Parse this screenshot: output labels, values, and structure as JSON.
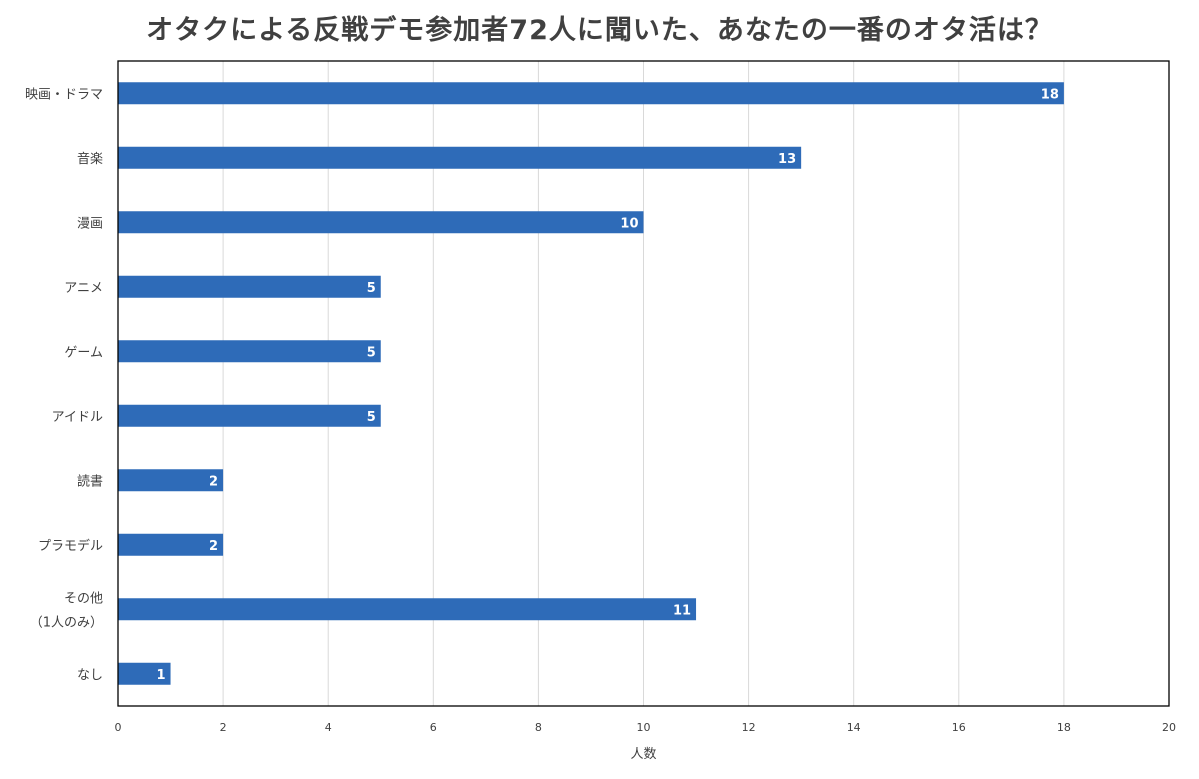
{
  "chart_data": {
    "type": "bar",
    "orientation": "horizontal",
    "title": "オタクによる反戦デモ参加者72人に聞いた、あなたの一番のオタ活は？",
    "categories": [
      "映画・ドラマ",
      "音楽",
      "漫画",
      "アニメ",
      "ゲーム",
      "アイドル",
      "読書",
      "プラモデル",
      "その他\n（1人のみ）",
      "なし"
    ],
    "values": [
      18,
      13,
      10,
      5,
      5,
      5,
      2,
      2,
      11,
      1
    ],
    "xlabel": "人数",
    "ylabel": "",
    "xlim": [
      0,
      20
    ],
    "x_ticks": [
      "0",
      "2",
      "4",
      "6",
      "8",
      "10",
      "12",
      "14",
      "16",
      "18",
      "20"
    ],
    "data_labels": [
      "18",
      "13",
      "10",
      "5",
      "5",
      "5",
      "2",
      "2",
      "11",
      "1"
    ],
    "bar_color": "#2e6bb8",
    "gridline_color": "#d9d9d9",
    "grid": "vertical",
    "legend": "none"
  }
}
